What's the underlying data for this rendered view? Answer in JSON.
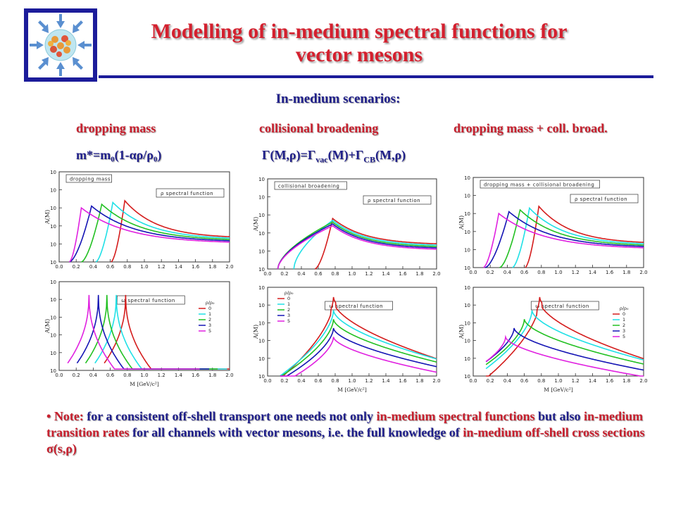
{
  "title_line1": "Modelling of in-medium spectral functions for",
  "title_line2": "vector mesons",
  "subtitle": "In-medium scenarios:",
  "scenarios": [
    "dropping mass",
    "collisional broadening",
    "dropping mass + coll. broad."
  ],
  "formula_dm": "m*=m₀(1-αρ/ρ₀)",
  "formula_cb": "Γ(M,ρ)=Γvac(M)+ΓCB(M,ρ)",
  "note": {
    "bullet": "•",
    "p1": "Note:",
    "p2": "for a consistent off-shell transport one needs not only",
    "p3": "in-medium spectral functions",
    "p4": "but also",
    "p5": "in-medium transition rates",
    "p6": "for all channels  with vector mesons, i.e. the full knowledge of",
    "p7": "in-medium off-shell cross sections σ(s,ρ)"
  },
  "colors": {
    "title": "#d4202e",
    "navy": "#1f1f8a",
    "series": [
      "#d41c1c",
      "#1fe0e6",
      "#22c022",
      "#1414b4",
      "#e020e0"
    ]
  },
  "chart_data": [
    {
      "type": "line",
      "id": "rho-dm",
      "row": "rho",
      "label": "dropping mass",
      "legend": "ρ spectral function",
      "xlabel": "",
      "ylabel": "A(M)",
      "ytick": "10",
      "xlim": [
        0,
        2
      ],
      "xticks": [
        "0.0",
        "0.2",
        "0.4",
        "0.6",
        "0.8",
        "1.0",
        "1.2",
        "1.4",
        "1.6",
        "1.8",
        "2.0"
      ],
      "series": [
        {
          "peak_x": 0.77,
          "shape": "broad"
        },
        {
          "peak_x": 0.63,
          "shape": "broad"
        },
        {
          "peak_x": 0.5,
          "shape": "broad"
        },
        {
          "peak_x": 0.38,
          "shape": "broad"
        },
        {
          "peak_x": 0.26,
          "shape": "broad"
        }
      ]
    },
    {
      "type": "line",
      "id": "rho-cb",
      "row": "rho",
      "label": "collisional broadening",
      "legend": "ρ spectral function",
      "xlabel": "",
      "ylabel": "A(M)",
      "ytick": "10",
      "xlim": [
        0,
        2
      ],
      "xticks": [
        "0.0",
        "0.2",
        "0.4",
        "0.6",
        "0.8",
        "1.0",
        "1.2",
        "1.4",
        "1.6",
        "1.8",
        "2.0"
      ],
      "series": [
        {
          "peak_x": 0.77,
          "shape": "broad"
        },
        {
          "peak_x": 0.77,
          "shape": "broad"
        },
        {
          "peak_x": 0.77,
          "shape": "broad"
        },
        {
          "peak_x": 0.77,
          "shape": "broad"
        },
        {
          "peak_x": 0.77,
          "shape": "broad"
        }
      ]
    },
    {
      "type": "line",
      "id": "rho-dmcb",
      "row": "rho",
      "label": "dropping mass + collisional broadening",
      "legend": "ρ spectral function",
      "xlabel": "",
      "ylabel": "A(M)",
      "ytick": "10",
      "xlim": [
        0,
        2
      ],
      "xticks": [
        "0.0",
        "0.2",
        "0.4",
        "0.6",
        "0.8",
        "1.0",
        "1.2",
        "1.4",
        "1.6",
        "1.8",
        "2.0"
      ],
      "series": [
        {
          "peak_x": 0.77,
          "shape": "broad"
        },
        {
          "peak_x": 0.66,
          "shape": "broad"
        },
        {
          "peak_x": 0.55,
          "shape": "broad"
        },
        {
          "peak_x": 0.42,
          "shape": "broad"
        },
        {
          "peak_x": 0.3,
          "shape": "broad"
        }
      ]
    },
    {
      "type": "line",
      "id": "omega-dm",
      "row": "omega",
      "label": "",
      "legend": "ω spectral function",
      "xlabel": "M  [GeV/c²]",
      "ylabel": "A(M)",
      "ytick": "10",
      "xlim": [
        0,
        2
      ],
      "xticks": [
        "0.0",
        "0.2",
        "0.4",
        "0.6",
        "0.8",
        "1.0",
        "1.2",
        "1.4",
        "1.6",
        "1.8",
        "2.0"
      ],
      "density_title": "ρ/ρ₀",
      "density_values": [
        "0",
        "1",
        "2",
        "3",
        "5"
      ],
      "series": [
        {
          "peak_x": 0.78,
          "shape": "sharp"
        },
        {
          "peak_x": 0.67,
          "shape": "sharp"
        },
        {
          "peak_x": 0.56,
          "shape": "sharp"
        },
        {
          "peak_x": 0.46,
          "shape": "sharp"
        },
        {
          "peak_x": 0.35,
          "shape": "sharp"
        }
      ]
    },
    {
      "type": "line",
      "id": "omega-cb",
      "row": "omega",
      "label": "",
      "legend": "ω spectral function",
      "xlabel": "M  [GeV/c²]",
      "ylabel": "A(M)",
      "ytick": "10",
      "xlim": [
        0,
        2
      ],
      "xticks": [
        "0.0",
        "0.2",
        "0.4",
        "0.6",
        "0.8",
        "1.0",
        "1.2",
        "1.4",
        "1.6",
        "1.8",
        "2.0"
      ],
      "density_title": "ρ/ρ₀",
      "density_values": [
        "0",
        "1",
        "2",
        "3",
        "5"
      ],
      "series": [
        {
          "peak_x": 0.78,
          "shape": "cusp"
        },
        {
          "peak_x": 0.78,
          "shape": "cusp"
        },
        {
          "peak_x": 0.78,
          "shape": "cusp"
        },
        {
          "peak_x": 0.78,
          "shape": "cusp"
        },
        {
          "peak_x": 0.78,
          "shape": "cusp"
        }
      ]
    },
    {
      "type": "line",
      "id": "omega-dmcb",
      "row": "omega",
      "label": "",
      "legend": "ω spectral function",
      "xlabel": "M  [GeV/c²]",
      "ylabel": "A(M)",
      "ytick": "10",
      "xlim": [
        0,
        2
      ],
      "xticks": [
        "0.0",
        "0.2",
        "0.4",
        "0.6",
        "0.8",
        "1.0",
        "1.2",
        "1.4",
        "1.6",
        "1.8",
        "2.0"
      ],
      "density_title": "ρ/ρ₀",
      "density_values": [
        "0",
        "1",
        "2",
        "3",
        "5"
      ],
      "series": [
        {
          "peak_x": 0.78,
          "shape": "cusp"
        },
        {
          "peak_x": 0.69,
          "shape": "cusp"
        },
        {
          "peak_x": 0.6,
          "shape": "cusp"
        },
        {
          "peak_x": 0.48,
          "shape": "cusp"
        },
        {
          "peak_x": 0.38,
          "shape": "cusp"
        }
      ]
    }
  ]
}
